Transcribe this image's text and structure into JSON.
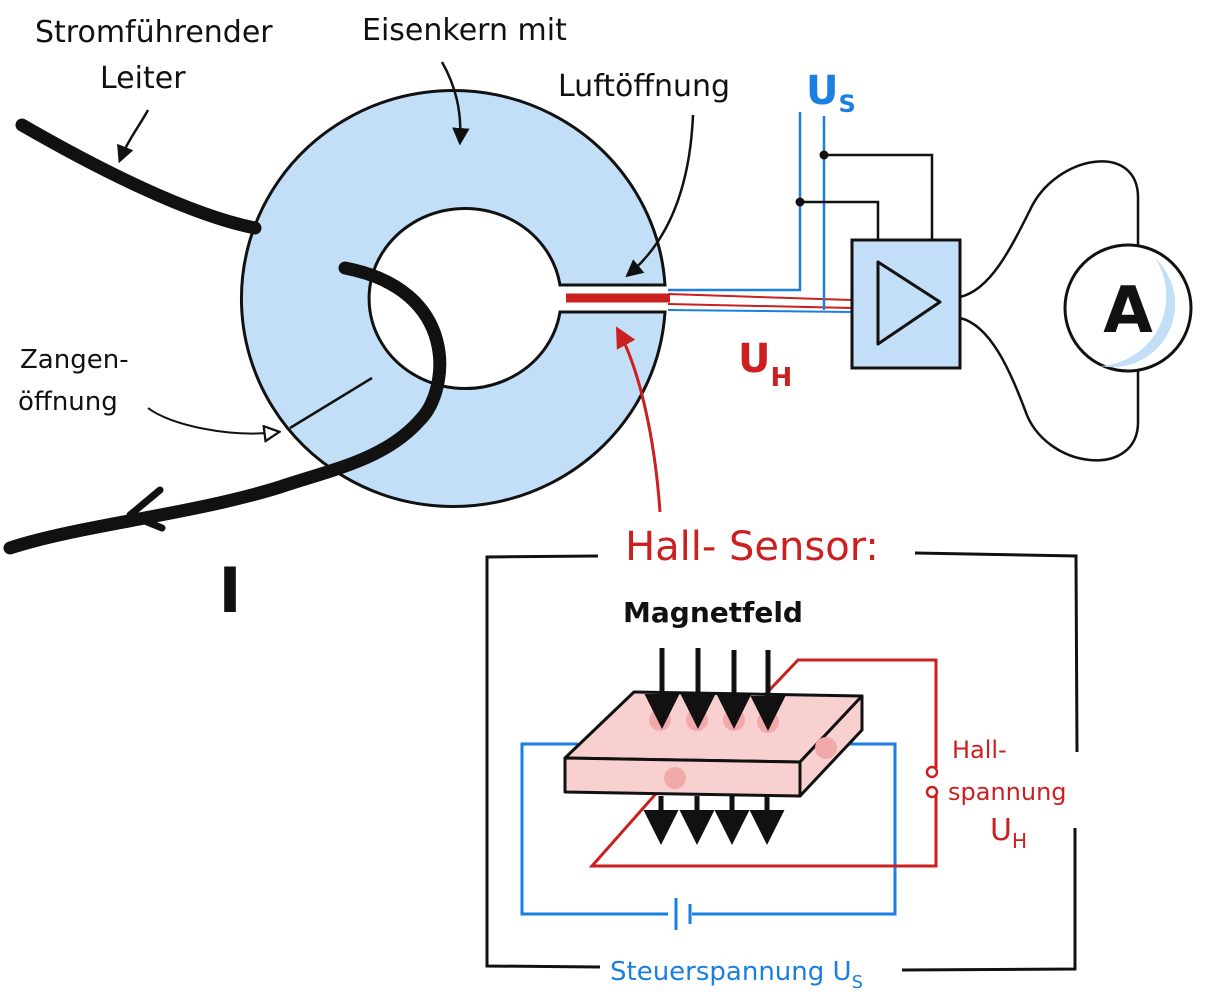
{
  "labels": {
    "conductor_line1": "Stromführender",
    "conductor_line2": "Leiter",
    "core_line1": "Eisenkern mit",
    "core_line2": "Luftöffnung",
    "us_main": "U",
    "us_main_sub": "S",
    "uh_main": "U",
    "uh_main_sub": "H",
    "clamp_line1": "Zangen-",
    "clamp_line2": "öffnung",
    "current": "I",
    "ammeter": "A",
    "hall_title": "Hall- Sensor:",
    "magnetfeld": "Magnetfeld",
    "hall_volt_line1": "Hall-",
    "hall_volt_line2": "spannung",
    "hall_volt_sym": "U",
    "hall_volt_sub": "H",
    "steuer": "Steuerspannung U",
    "steuer_sub": "S"
  },
  "colors": {
    "ink": "#111111",
    "blue": "#1a7fe0",
    "red": "#cc1f1f",
    "core_fill": "#c2dff7",
    "plate_fill": "#f8d0d0",
    "dot_fill": "#f2a9a9"
  }
}
